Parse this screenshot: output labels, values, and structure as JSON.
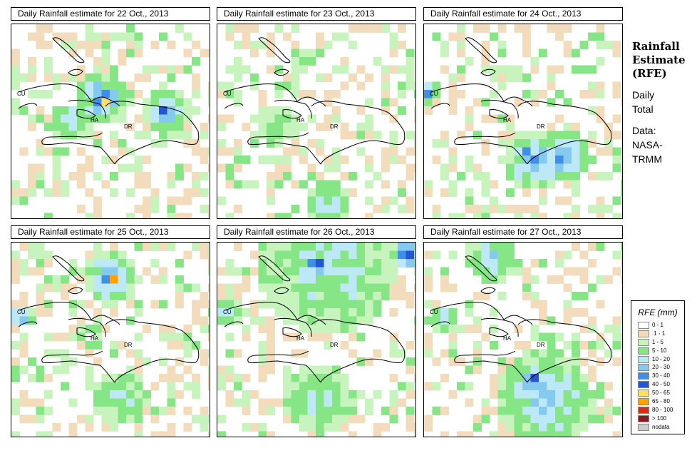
{
  "colors": {
    "background": "#ffffff",
    "coastline": "#000000",
    "bins": [
      "#ffffff",
      "#f2dcbc",
      "#c7f4bd",
      "#86e686",
      "#bde9f7",
      "#86c9ef",
      "#3f8fe8",
      "#2355d5",
      "#ffe066",
      "#ffa300",
      "#dd2c10",
      "#8b1a1a",
      "#cccccc"
    ]
  },
  "panels": [
    {
      "title": "Daily Rainfall estimate for  22 Oct., 2013"
    },
    {
      "title": "Daily Rainfall estimate for  23 Oct., 2013"
    },
    {
      "title": "Daily Rainfall estimate for  24 Oct., 2013"
    },
    {
      "title": "Daily Rainfall estimate for  25 Oct., 2013"
    },
    {
      "title": "Daily Rainfall estimate for  26 Oct., 2013"
    },
    {
      "title": "Daily Rainfall estimate for  27 Oct., 2013"
    }
  ],
  "map_labels": {
    "cuba": "CU",
    "haiti": "HA",
    "dominican_republic": "DR"
  },
  "side_title": {
    "line1": "Rainfall",
    "line2": "Estimate",
    "line3": "(RFE)"
  },
  "side_info": {
    "line1": "Daily",
    "line2": "Total",
    "line3": "Data:",
    "line4": "NASA-",
    "line5": "TRMM"
  },
  "legend": {
    "title": "RFE (mm)",
    "items": [
      {
        "label": "0 - 1",
        "color": "#ffffff"
      },
      {
        "label": ".1 - 1",
        "color": "#f2dcbc"
      },
      {
        "label": "1 - 5",
        "color": "#c7f4bd"
      },
      {
        "label": "5 - 10",
        "color": "#86e686"
      },
      {
        "label": "10 - 20",
        "color": "#bde9f7"
      },
      {
        "label": "20 - 30",
        "color": "#86c9ef"
      },
      {
        "label": "30 - 40",
        "color": "#3f8fe8"
      },
      {
        "label": "40 - 50",
        "color": "#2355d5"
      },
      {
        "label": "50 - 65",
        "color": "#ffe066"
      },
      {
        "label": "65 - 80",
        "color": "#ffa300"
      },
      {
        "label": "80 - 100",
        "color": "#dd2c10"
      },
      {
        "label": "> 100",
        "color": "#8b1a1a"
      },
      {
        "label": "nodata",
        "color": "#cccccc"
      }
    ]
  }
}
